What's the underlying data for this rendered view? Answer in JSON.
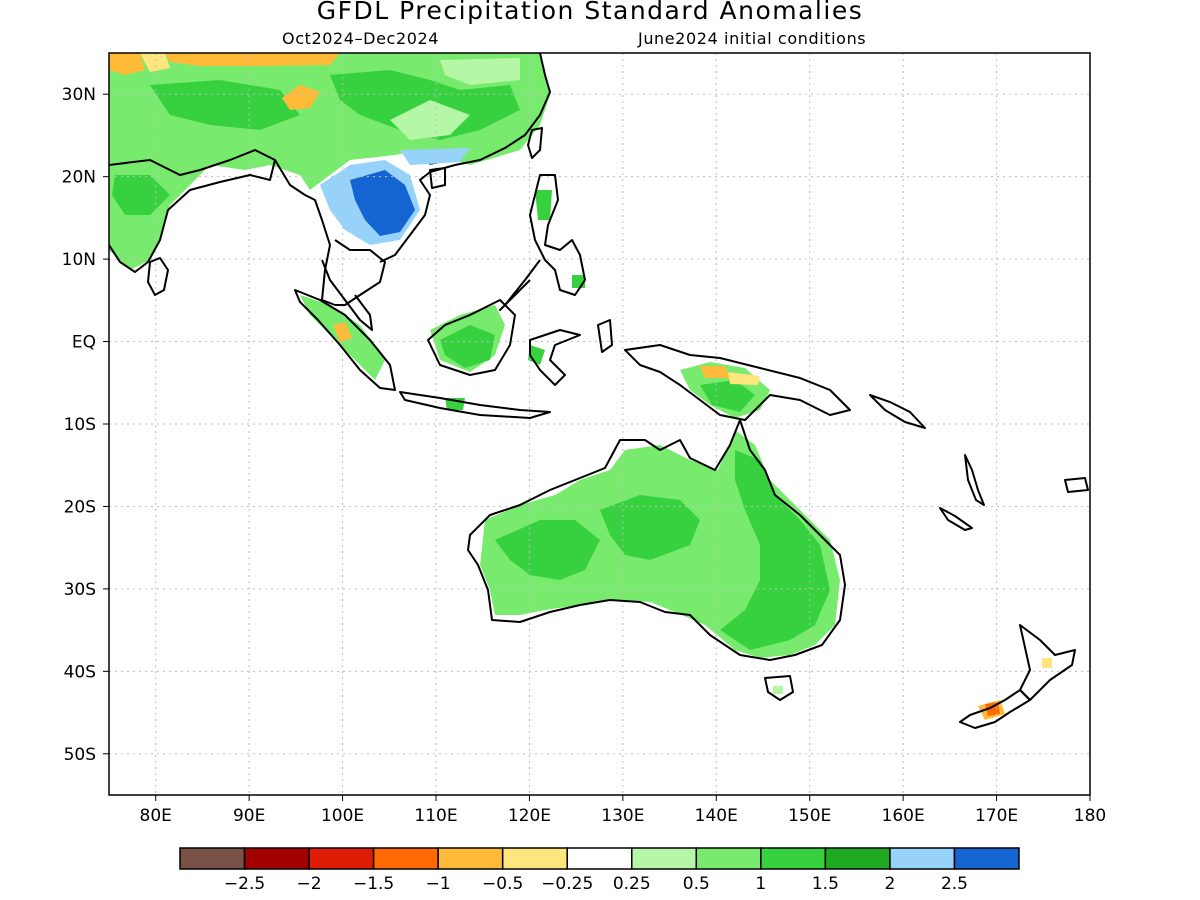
{
  "header": {
    "title": "GFDL Precipitation Standard Anomalies",
    "period": "Oct2024–Dec2024",
    "init": "June2024 initial conditions"
  },
  "map": {
    "lon_range": [
      75,
      180
    ],
    "lat_range": [
      -55,
      35
    ],
    "lon_ticks": [
      {
        "v": 80,
        "label": "80E"
      },
      {
        "v": 90,
        "label": "90E"
      },
      {
        "v": 100,
        "label": "100E"
      },
      {
        "v": 110,
        "label": "110E"
      },
      {
        "v": 120,
        "label": "120E"
      },
      {
        "v": 130,
        "label": "130E"
      },
      {
        "v": 140,
        "label": "140E"
      },
      {
        "v": 150,
        "label": "150E"
      },
      {
        "v": 160,
        "label": "160E"
      },
      {
        "v": 170,
        "label": "170E"
      },
      {
        "v": 180,
        "label": "180"
      }
    ],
    "lat_ticks": [
      {
        "v": 30,
        "label": "30N"
      },
      {
        "v": 20,
        "label": "20N"
      },
      {
        "v": 10,
        "label": "10N"
      },
      {
        "v": 0,
        "label": "EQ"
      },
      {
        "v": -10,
        "label": "10S"
      },
      {
        "v": -20,
        "label": "20S"
      },
      {
        "v": -30,
        "label": "30S"
      },
      {
        "v": -40,
        "label": "40S"
      },
      {
        "v": -50,
        "label": "50S"
      }
    ],
    "grid": true
  },
  "colorbar": {
    "colors": [
      "#7a5147",
      "#a50000",
      "#dd1c05",
      "#ff6a00",
      "#ffbb38",
      "#ffe57d",
      "#ffffff",
      "#b5f7a6",
      "#78eb6e",
      "#37d13f",
      "#1faa22",
      "#96d2fa",
      "#1464d2"
    ],
    "labels": [
      "−2.5",
      "−2",
      "−1.5",
      "−1",
      "−0.5",
      "−0.25",
      "0.25",
      "0.5",
      "1",
      "1.5",
      "2",
      "2.5"
    ]
  }
}
